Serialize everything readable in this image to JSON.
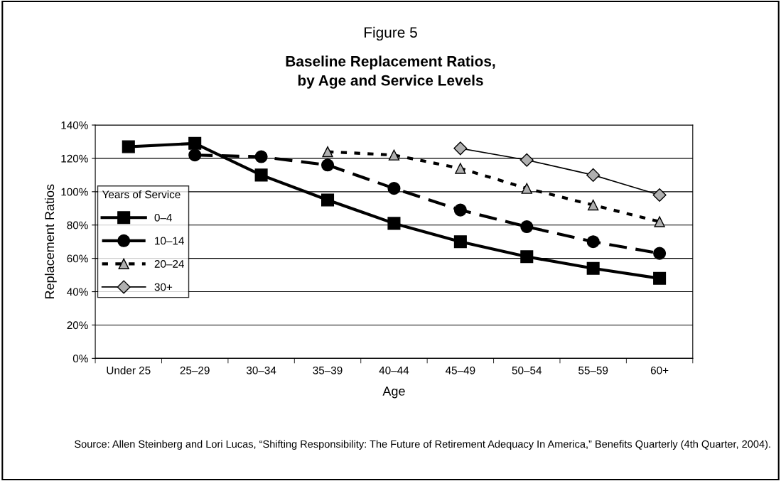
{
  "chart_data": {
    "type": "line",
    "title": "Figure 5",
    "subtitle": "Baseline Replacement Ratios,\nby Age and Service Levels",
    "xlabel": "Age",
    "ylabel": "Replacement Ratios",
    "legend_title": "Years of Service",
    "categories": [
      "Under 25",
      "25–29",
      "30–34",
      "35–39",
      "40–44",
      "45–49",
      "50–54",
      "55–59",
      "60+"
    ],
    "series": [
      {
        "name": "0–4",
        "color": "#000000",
        "marker": "square",
        "line_style": "solid",
        "values": [
          127,
          129,
          110,
          95,
          81,
          70,
          61,
          54,
          48
        ]
      },
      {
        "name": "10–14",
        "color": "#000000",
        "marker": "circle",
        "line_style": "dashed",
        "values": [
          null,
          122,
          121,
          116,
          102,
          89,
          79,
          70,
          63
        ]
      },
      {
        "name": "20–24",
        "color": "#000000",
        "marker": "triangle",
        "line_style": "dotted",
        "values": [
          null,
          null,
          null,
          124,
          122,
          114,
          102,
          92,
          82
        ]
      },
      {
        "name": "30+",
        "color": "#000000",
        "marker": "diamond",
        "line_style": "solid",
        "values": [
          null,
          null,
          null,
          null,
          null,
          126,
          119,
          110,
          98
        ]
      }
    ],
    "ylim": [
      0,
      140
    ],
    "yticks": [
      {
        "value": 0,
        "label": "0%"
      },
      {
        "value": 20,
        "label": "20%"
      },
      {
        "value": 40,
        "label": "40%"
      },
      {
        "value": 60,
        "label": "60%"
      },
      {
        "value": 80,
        "label": "80%"
      },
      {
        "value": 100,
        "label": "100%"
      },
      {
        "value": 120,
        "label": "120%"
      },
      {
        "value": 140,
        "label": "140%"
      }
    ],
    "grid": "y",
    "legend": "left",
    "annotations": [
      "Source: Allen Steinberg and Lori Lucas, “Shifting Responsibility: The Future of Retirement Adequacy In America,” Benefits Quarterly (4th Quarter, 2004)."
    ]
  }
}
